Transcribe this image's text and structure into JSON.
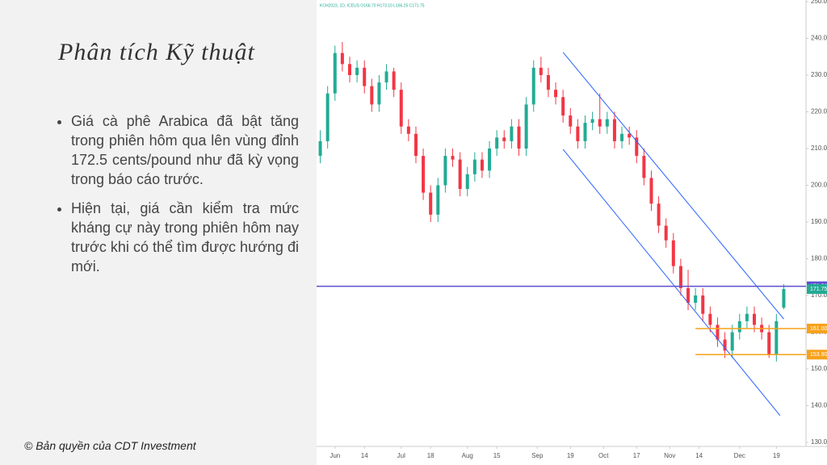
{
  "slide": {
    "title": "Phân tích Kỹ thuật",
    "bullets": [
      "Giá cà phê Arabica đã bật tăng trong phiên hôm qua lên vùng đỉnh 172.5 cents/pound như đã kỳ vọng trong báo cáo trước.",
      "Hiện tại, giá cần kiểm tra mức kháng cự này trong phiên hôm nay trước khi có thể tìm được hướng đi mới."
    ],
    "footer": "© Bản quyền của CDT Investment"
  },
  "chart_data": {
    "type": "candlestick",
    "legend_text": "KCH2023, 1D, ICEUS  O166.70 H173.10 L166.25 C171.75",
    "up_color": "#22ab94",
    "down_color": "#f23645",
    "xlim": [
      -1,
      127
    ],
    "ylim": [
      130,
      250
    ],
    "xticks": [
      {
        "value": 4,
        "label": "Jun"
      },
      {
        "value": 12,
        "label": "14"
      },
      {
        "value": 22,
        "label": "Jul"
      },
      {
        "value": 30,
        "label": "18"
      },
      {
        "value": 40,
        "label": "Aug"
      },
      {
        "value": 48,
        "label": "15"
      },
      {
        "value": 59,
        "label": "Sep"
      },
      {
        "value": 68,
        "label": "19"
      },
      {
        "value": 77,
        "label": "Oct"
      },
      {
        "value": 86,
        "label": "17"
      },
      {
        "value": 95,
        "label": "Nov"
      },
      {
        "value": 103,
        "label": "14"
      },
      {
        "value": 114,
        "label": "Dec"
      },
      {
        "value": 124,
        "label": "19"
      }
    ],
    "yticks": [
      {
        "value": 130,
        "label": "130.00"
      },
      {
        "value": 140,
        "label": "140.00"
      },
      {
        "value": 150,
        "label": "150.00"
      },
      {
        "value": 160,
        "label": "160.00"
      },
      {
        "value": 170,
        "label": "170.00"
      },
      {
        "value": 180,
        "label": "180.00"
      },
      {
        "value": 190,
        "label": "190.00"
      },
      {
        "value": 200,
        "label": "200.00"
      },
      {
        "value": 210,
        "label": "210.00"
      },
      {
        "value": 220,
        "label": "220.00"
      },
      {
        "value": 230,
        "label": "230.00"
      },
      {
        "value": 240,
        "label": "240.00"
      },
      {
        "value": 250,
        "label": "250.00"
      }
    ],
    "x": [
      0,
      2,
      4,
      6,
      8,
      10,
      12,
      14,
      16,
      18,
      20,
      22,
      24,
      26,
      28,
      30,
      32,
      34,
      36,
      38,
      40,
      42,
      44,
      46,
      48,
      50,
      52,
      54,
      56,
      58,
      60,
      62,
      64,
      66,
      68,
      70,
      72,
      74,
      76,
      78,
      80,
      82,
      84,
      86,
      88,
      90,
      92,
      94,
      96,
      98,
      100,
      102,
      104,
      106,
      108,
      110,
      112,
      114,
      116,
      118,
      120,
      122,
      124,
      126
    ],
    "ohlc": [
      [
        208,
        215,
        206,
        212
      ],
      [
        212,
        227,
        210,
        225
      ],
      [
        225,
        238,
        223,
        236
      ],
      [
        236,
        239,
        231,
        233
      ],
      [
        233,
        235,
        228,
        230
      ],
      [
        230,
        234,
        228,
        232
      ],
      [
        232,
        234,
        225,
        227
      ],
      [
        227,
        229,
        220,
        222
      ],
      [
        222,
        230,
        220,
        228
      ],
      [
        228,
        233,
        226,
        231
      ],
      [
        231,
        232,
        224,
        226
      ],
      [
        226,
        228,
        214,
        216
      ],
      [
        216,
        218,
        212,
        214
      ],
      [
        214,
        216,
        206,
        208
      ],
      [
        208,
        210,
        196,
        198
      ],
      [
        198,
        200,
        190,
        192
      ],
      [
        192,
        202,
        190,
        200
      ],
      [
        200,
        210,
        198,
        208
      ],
      [
        208,
        210,
        205,
        207
      ],
      [
        207,
        209,
        197,
        199
      ],
      [
        199,
        205,
        197,
        203
      ],
      [
        203,
        209,
        201,
        207
      ],
      [
        207,
        209,
        202,
        204
      ],
      [
        204,
        212,
        202,
        210
      ],
      [
        210,
        215,
        208,
        213
      ],
      [
        213,
        215,
        210,
        212
      ],
      [
        212,
        218,
        210,
        216
      ],
      [
        216,
        218,
        208,
        210
      ],
      [
        210,
        224,
        208,
        222
      ],
      [
        222,
        234,
        220,
        232
      ],
      [
        232,
        235,
        228,
        230
      ],
      [
        230,
        232,
        224,
        226
      ],
      [
        226,
        228,
        222,
        224
      ],
      [
        224,
        226,
        217,
        219
      ],
      [
        219,
        221,
        214,
        216
      ],
      [
        216,
        218,
        210,
        212
      ],
      [
        212,
        219,
        210,
        217
      ],
      [
        217,
        220,
        215,
        218
      ],
      [
        218,
        225,
        214,
        216
      ],
      [
        216,
        220,
        214,
        218
      ],
      [
        218,
        220,
        210,
        212
      ],
      [
        212,
        216,
        210,
        214
      ],
      [
        214,
        216,
        211,
        213
      ],
      [
        213,
        215,
        206,
        208
      ],
      [
        208,
        210,
        200,
        202
      ],
      [
        202,
        204,
        193,
        195
      ],
      [
        195,
        197,
        187,
        189
      ],
      [
        189,
        191,
        183,
        185
      ],
      [
        185,
        187,
        176,
        178
      ],
      [
        178,
        180,
        170,
        172
      ],
      [
        172,
        177,
        166,
        168
      ],
      [
        168,
        172,
        166,
        170
      ],
      [
        170,
        172,
        163,
        165
      ],
      [
        165,
        167,
        160,
        162
      ],
      [
        162,
        164,
        156,
        158
      ],
      [
        158,
        160,
        153,
        155
      ],
      [
        155,
        162,
        153,
        160
      ],
      [
        160,
        165,
        158,
        163
      ],
      [
        163,
        167,
        161,
        165
      ],
      [
        165,
        167,
        160,
        162
      ],
      [
        162,
        164,
        158,
        160
      ],
      [
        160,
        162,
        153,
        154
      ],
      [
        154,
        165,
        152,
        163
      ],
      [
        166.7,
        173.1,
        166.25,
        171.75
      ]
    ],
    "trendlines": [
      {
        "x": [
          66,
          126
        ],
        "y": [
          236.2,
          163.6
        ],
        "color": "#2962ff"
      },
      {
        "x": [
          66,
          125
        ],
        "y": [
          209.8,
          137.3
        ],
        "color": "#2962ff"
      }
    ],
    "hlines": [
      {
        "value": 172.5,
        "label": "172.50",
        "color": "#5b4fcf"
      },
      {
        "value": 161,
        "label": "161.00",
        "color": "#f7a21b",
        "from": 102
      },
      {
        "value": 153.9,
        "label": "153.90",
        "color": "#f7a21b",
        "from": 102
      }
    ],
    "last_price": {
      "value": 171.75,
      "label": "171.75",
      "color": "#22ab94"
    }
  }
}
